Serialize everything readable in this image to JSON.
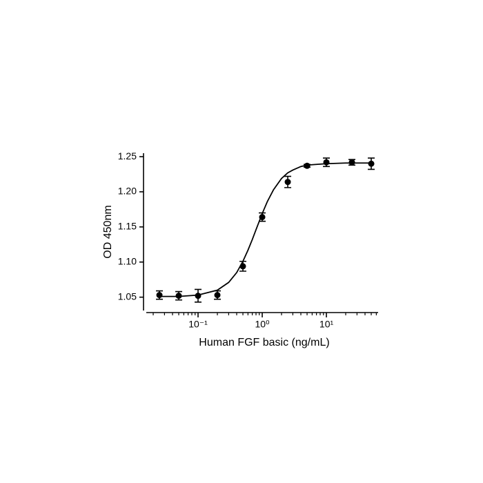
{
  "chart_data": {
    "type": "scatter",
    "xlabel": "Human FGF basic (ng/mL)",
    "ylabel": "OD 450nm",
    "xscale": "log",
    "xlim": [
      0.0156,
      64
    ],
    "xticks": [
      {
        "value": 0.1,
        "label": "10⁻¹"
      },
      {
        "value": 1,
        "label": "10⁰"
      },
      {
        "value": 10,
        "label": "10¹"
      }
    ],
    "ylim": [
      1.032,
      1.254
    ],
    "yticks": [
      1.05,
      {
        "value": 1.1,
        "label": "1.10"
      },
      1.15,
      {
        "value": 1.2,
        "label": "1.20"
      },
      1.25
    ],
    "series": [
      {
        "mode": "markers",
        "color": "#000000",
        "x": [
          0.025,
          0.05,
          0.1,
          0.2,
          0.5,
          1,
          2.5,
          5,
          10,
          25,
          50
        ],
        "values": [
          1.053,
          1.052,
          1.052,
          1.053,
          1.094,
          1.164,
          1.214,
          1.237,
          1.242,
          1.242,
          1.24
        ],
        "errors": [
          0.006,
          0.006,
          0.009,
          0.006,
          0.007,
          0.006,
          0.008,
          0.002,
          0.006,
          0.004,
          0.008
        ]
      },
      {
        "mode": "line",
        "color": "#000000",
        "x": [
          0.025,
          0.05,
          0.1,
          0.2,
          0.3,
          0.4,
          0.5,
          0.6,
          0.7,
          0.8,
          1,
          1.2,
          1.5,
          2,
          2.5,
          3,
          4,
          5,
          7,
          10,
          20,
          50
        ],
        "values": [
          1.051,
          1.051,
          1.053,
          1.06,
          1.071,
          1.085,
          1.101,
          1.117,
          1.132,
          1.146,
          1.169,
          1.186,
          1.203,
          1.219,
          1.227,
          1.231,
          1.236,
          1.238,
          1.239,
          1.24,
          1.241,
          1.241
        ]
      }
    ]
  }
}
